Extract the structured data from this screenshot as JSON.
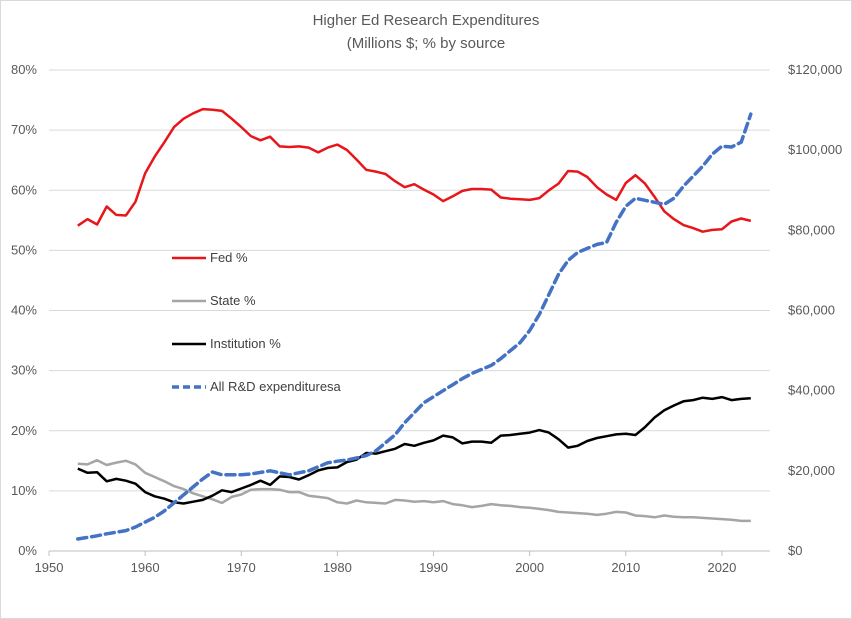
{
  "chart_data": {
    "type": "line",
    "title": "Higher Ed Research  Expenditures",
    "subtitle": "(Millions $;  % by source",
    "left_axis": {
      "range": [
        0,
        80
      ],
      "ticks": [
        0,
        10,
        20,
        30,
        40,
        50,
        60,
        70,
        80
      ],
      "tick_labels": [
        "0%",
        "10%",
        "20%",
        "30%",
        "40%",
        "50%",
        "60%",
        "70%",
        "80%"
      ]
    },
    "right_axis": {
      "range": [
        0,
        120000
      ],
      "ticks": [
        0,
        20000,
        40000,
        60000,
        80000,
        100000,
        120000
      ],
      "tick_labels": [
        "$0",
        "$20,000",
        "$40,000",
        "$60,000",
        "$80,000",
        "$100,000",
        "$120,000"
      ]
    },
    "x_axis": {
      "range": [
        1950,
        2025
      ],
      "ticks": [
        1950,
        1960,
        1970,
        1980,
        1990,
        2000,
        2010,
        2020
      ],
      "tick_labels": [
        "1950",
        "1960",
        "1970",
        "1980",
        "1990",
        "2000",
        "2010",
        "2020"
      ]
    },
    "grid": "horizontal",
    "legend_position": "center-left",
    "series": [
      {
        "name": "Fed %",
        "axis": "left",
        "color": "#e8151b",
        "style": "solid",
        "x": [
          1953,
          1954,
          1955,
          1956,
          1957,
          1958,
          1959,
          1960,
          1961,
          1962,
          1963,
          1964,
          1965,
          1966,
          1967,
          1968,
          1969,
          1970,
          1971,
          1972,
          1973,
          1974,
          1975,
          1976,
          1977,
          1978,
          1979,
          1980,
          1981,
          1982,
          1983,
          1984,
          1985,
          1986,
          1987,
          1988,
          1989,
          1990,
          1991,
          1992,
          1993,
          1994,
          1995,
          1996,
          1997,
          1998,
          1999,
          2000,
          2001,
          2002,
          2003,
          2004,
          2005,
          2006,
          2007,
          2008,
          2009,
          2010,
          2011,
          2012,
          2013,
          2014,
          2015,
          2016,
          2017,
          2018,
          2019,
          2020,
          2021,
          2022,
          2023
        ],
        "values": [
          54.1,
          55.2,
          54.3,
          57.3,
          55.9,
          55.8,
          58.1,
          62.8,
          65.6,
          68.0,
          70.5,
          71.9,
          72.8,
          73.5,
          73.4,
          73.2,
          71.9,
          70.5,
          69.0,
          68.3,
          68.9,
          67.3,
          67.2,
          67.3,
          67.1,
          66.3,
          67.1,
          67.6,
          66.7,
          65.1,
          63.4,
          63.1,
          62.7,
          61.5,
          60.5,
          61.0,
          60.1,
          59.3,
          58.2,
          59.0,
          59.9,
          60.2,
          60.2,
          60.1,
          58.8,
          58.6,
          58.5,
          58.4,
          58.7,
          60.0,
          61.1,
          63.2,
          63.1,
          62.2,
          60.5,
          59.3,
          58.4,
          61.2,
          62.5,
          61.1,
          58.9,
          56.5,
          55.2,
          54.2,
          53.7,
          53.1,
          53.4,
          53.5,
          54.8,
          55.3,
          54.9
        ]
      },
      {
        "name": "State %",
        "axis": "left",
        "color": "#a5a5a5",
        "style": "solid",
        "x": [
          1953,
          1954,
          1955,
          1956,
          1957,
          1958,
          1959,
          1960,
          1961,
          1962,
          1963,
          1964,
          1965,
          1966,
          1967,
          1968,
          1969,
          1970,
          1971,
          1972,
          1973,
          1974,
          1975,
          1976,
          1977,
          1978,
          1979,
          1980,
          1981,
          1982,
          1983,
          1984,
          1985,
          1986,
          1987,
          1988,
          1989,
          1990,
          1991,
          1992,
          1993,
          1994,
          1995,
          1996,
          1997,
          1998,
          1999,
          2000,
          2001,
          2002,
          2003,
          2004,
          2005,
          2006,
          2007,
          2008,
          2009,
          2010,
          2011,
          2012,
          2013,
          2014,
          2015,
          2016,
          2017,
          2018,
          2019,
          2020,
          2021,
          2022,
          2023
        ],
        "values": [
          14.5,
          14.4,
          15.1,
          14.3,
          14.7,
          15.0,
          14.4,
          13.0,
          12.3,
          11.6,
          10.8,
          10.3,
          9.6,
          9.1,
          8.6,
          8.0,
          9.0,
          9.4,
          10.2,
          10.3,
          10.3,
          10.2,
          9.8,
          9.8,
          9.2,
          9.0,
          8.8,
          8.1,
          7.9,
          8.4,
          8.1,
          8.0,
          7.9,
          8.5,
          8.4,
          8.2,
          8.3,
          8.1,
          8.3,
          7.8,
          7.6,
          7.3,
          7.5,
          7.8,
          7.6,
          7.5,
          7.3,
          7.2,
          7.0,
          6.8,
          6.5,
          6.4,
          6.3,
          6.2,
          6.0,
          6.2,
          6.5,
          6.4,
          5.9,
          5.8,
          5.6,
          5.9,
          5.7,
          5.6,
          5.6,
          5.5,
          5.4,
          5.3,
          5.2,
          5.0,
          5.0
        ]
      },
      {
        "name": "Institution %",
        "axis": "left",
        "color": "#000000",
        "style": "solid",
        "x": [
          1953,
          1954,
          1955,
          1956,
          1957,
          1958,
          1959,
          1960,
          1961,
          1962,
          1963,
          1964,
          1965,
          1966,
          1967,
          1968,
          1969,
          1970,
          1971,
          1972,
          1973,
          1974,
          1975,
          1976,
          1977,
          1978,
          1979,
          1980,
          1981,
          1982,
          1983,
          1984,
          1985,
          1986,
          1987,
          1988,
          1989,
          1990,
          1991,
          1992,
          1993,
          1994,
          1995,
          1996,
          1997,
          1998,
          1999,
          2000,
          2001,
          2002,
          2003,
          2004,
          2005,
          2006,
          2007,
          2008,
          2009,
          2010,
          2011,
          2012,
          2013,
          2014,
          2015,
          2016,
          2017,
          2018,
          2019,
          2020,
          2021,
          2022,
          2023
        ],
        "values": [
          13.7,
          13.0,
          13.1,
          11.6,
          12.0,
          11.7,
          11.2,
          9.8,
          9.1,
          8.7,
          8.1,
          7.9,
          8.2,
          8.5,
          9.2,
          10.1,
          9.8,
          10.4,
          11.0,
          11.7,
          11.0,
          12.4,
          12.3,
          11.9,
          12.6,
          13.4,
          13.8,
          13.9,
          14.8,
          15.2,
          16.3,
          16.2,
          16.6,
          17.0,
          17.8,
          17.5,
          18.0,
          18.4,
          19.2,
          18.9,
          17.9,
          18.2,
          18.2,
          18.0,
          19.2,
          19.3,
          19.5,
          19.7,
          20.1,
          19.7,
          18.6,
          17.2,
          17.5,
          18.3,
          18.8,
          19.1,
          19.4,
          19.5,
          19.3,
          20.6,
          22.2,
          23.4,
          24.2,
          24.9,
          25.1,
          25.5,
          25.3,
          25.6,
          25.1,
          25.3,
          25.4
        ]
      },
      {
        "name": "All R&D expendituresa",
        "axis": "right",
        "color": "#4472c4",
        "style": "dashed",
        "x": [
          1953,
          1954,
          1955,
          1956,
          1957,
          1958,
          1959,
          1960,
          1961,
          1962,
          1963,
          1964,
          1965,
          1966,
          1967,
          1968,
          1969,
          1970,
          1971,
          1972,
          1973,
          1974,
          1975,
          1976,
          1977,
          1978,
          1979,
          1980,
          1981,
          1982,
          1983,
          1984,
          1985,
          1986,
          1987,
          1988,
          1989,
          1990,
          1991,
          1992,
          1993,
          1994,
          1995,
          1996,
          1997,
          1998,
          1999,
          2000,
          2001,
          2002,
          2003,
          2004,
          2005,
          2006,
          2007,
          2008,
          2009,
          2010,
          2011,
          2012,
          2013,
          2014,
          2015,
          2016,
          2017,
          2018,
          2019,
          2020,
          2021,
          2022,
          2023
        ],
        "values": [
          3000,
          3400,
          3800,
          4300,
          4700,
          5100,
          6000,
          7200,
          8400,
          10000,
          12000,
          14000,
          16000,
          18000,
          19700,
          19000,
          19000,
          19000,
          19200,
          19600,
          20000,
          19500,
          19000,
          19500,
          20000,
          21000,
          22000,
          22400,
          22700,
          23200,
          23800,
          25000,
          27000,
          29000,
          32000,
          34500,
          37000,
          38500,
          40000,
          41500,
          43000,
          44300,
          45300,
          46300,
          48000,
          50000,
          52000,
          55000,
          59000,
          64000,
          69000,
          72500,
          74500,
          75500,
          76500,
          77000,
          82000,
          86000,
          88000,
          87500,
          87000,
          86500,
          88000,
          91000,
          93500,
          96000,
          99000,
          101000,
          100800,
          102000,
          109000
        ]
      }
    ]
  }
}
